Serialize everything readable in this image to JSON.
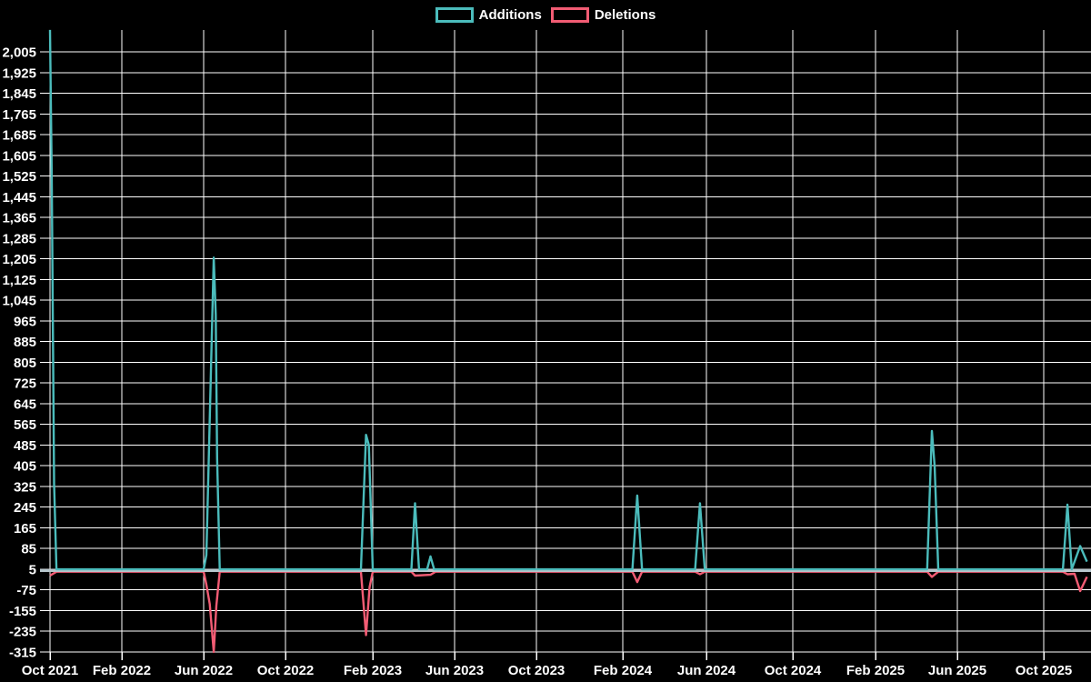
{
  "chart_data": {
    "type": "line",
    "title": "",
    "legend_position": "top",
    "background_color": "#000000",
    "text_color": "#ffffff",
    "grid": {
      "enabled": true,
      "color": "#ffffff",
      "zero_line_color": "#b7c6cc"
    },
    "x_axis": {
      "label": "",
      "ticks": [
        "Oct 2021",
        "Feb 2022",
        "Jun 2022",
        "Oct 2022",
        "Feb 2023",
        "Jun 2023",
        "Oct 2023",
        "Feb 2024",
        "Jun 2024",
        "Oct 2024",
        "Feb 2025",
        "Jun 2025",
        "Oct 2025"
      ]
    },
    "y_axis": {
      "label": "",
      "ticks": [
        2005,
        1925,
        1845,
        1765,
        1685,
        1605,
        1525,
        1445,
        1365,
        1285,
        1205,
        1125,
        1045,
        965,
        885,
        805,
        725,
        645,
        565,
        485,
        405,
        325,
        245,
        165,
        85,
        5,
        -75,
        -155,
        -235,
        -315
      ],
      "min": -330,
      "max": 2090
    },
    "series": [
      {
        "name": "Additions",
        "color": "#4bbcbc",
        "points": [
          [
            "2021-10-01",
            2085
          ],
          [
            "2021-10-04",
            1520
          ],
          [
            "2021-10-08",
            330
          ],
          [
            "2021-10-12",
            0
          ],
          [
            "2022-06-01",
            0
          ],
          [
            "2022-06-05",
            55
          ],
          [
            "2022-06-16",
            1205
          ],
          [
            "2022-06-19",
            985
          ],
          [
            "2022-06-21",
            430
          ],
          [
            "2022-06-25",
            0
          ],
          [
            "2023-01-15",
            0
          ],
          [
            "2023-01-22",
            520
          ],
          [
            "2023-01-26",
            480
          ],
          [
            "2023-02-01",
            0
          ],
          [
            "2023-03-28",
            0
          ],
          [
            "2023-04-03",
            255
          ],
          [
            "2023-04-09",
            0
          ],
          [
            "2023-04-21",
            0
          ],
          [
            "2023-04-26",
            50
          ],
          [
            "2023-05-01",
            0
          ],
          [
            "2024-02-15",
            0
          ],
          [
            "2024-02-22",
            285
          ],
          [
            "2024-02-29",
            0
          ],
          [
            "2024-05-15",
            0
          ],
          [
            "2024-05-22",
            255
          ],
          [
            "2024-05-29",
            0
          ],
          [
            "2025-04-17",
            0
          ],
          [
            "2025-04-24",
            535
          ],
          [
            "2025-04-28",
            400
          ],
          [
            "2025-05-03",
            0
          ],
          [
            "2025-10-28",
            0
          ],
          [
            "2025-11-04",
            250
          ],
          [
            "2025-11-10",
            0
          ],
          [
            "2025-11-22",
            90
          ],
          [
            "2025-12-01",
            30
          ]
        ]
      },
      {
        "name": "Deletions",
        "color": "#f25c74",
        "points": [
          [
            "2021-10-01",
            -15
          ],
          [
            "2021-10-12",
            0
          ],
          [
            "2022-06-01",
            0
          ],
          [
            "2022-06-05",
            -50
          ],
          [
            "2022-06-10",
            -125
          ],
          [
            "2022-06-16",
            -310
          ],
          [
            "2022-06-20",
            -130
          ],
          [
            "2022-06-25",
            0
          ],
          [
            "2023-01-15",
            0
          ],
          [
            "2023-01-22",
            -245
          ],
          [
            "2023-01-27",
            -60
          ],
          [
            "2023-02-01",
            0
          ],
          [
            "2023-03-28",
            0
          ],
          [
            "2023-04-03",
            -15
          ],
          [
            "2023-04-26",
            -12
          ],
          [
            "2023-05-03",
            0
          ],
          [
            "2024-02-15",
            0
          ],
          [
            "2024-02-22",
            -40
          ],
          [
            "2024-02-29",
            0
          ],
          [
            "2024-05-15",
            0
          ],
          [
            "2024-05-22",
            -10
          ],
          [
            "2024-05-29",
            0
          ],
          [
            "2025-04-17",
            0
          ],
          [
            "2025-04-24",
            -20
          ],
          [
            "2025-05-03",
            0
          ],
          [
            "2025-10-28",
            0
          ],
          [
            "2025-11-04",
            -10
          ],
          [
            "2025-11-14",
            -8
          ],
          [
            "2025-11-22",
            -75
          ],
          [
            "2025-12-01",
            -20
          ]
        ]
      }
    ]
  }
}
